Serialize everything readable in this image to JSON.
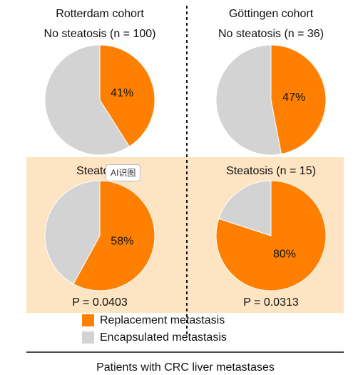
{
  "chart_data": [
    {
      "type": "pie",
      "cohort": "Rotterdam cohort",
      "title": "No steatosis (n = 100)",
      "categories": [
        "Replacement metastasis",
        "Encapsulated metastasis"
      ],
      "values": [
        41,
        59
      ],
      "value_labels": [
        "41%",
        null
      ],
      "colors": [
        "#ff8000",
        "#d3d3d3"
      ]
    },
    {
      "type": "pie",
      "cohort": "Göttingen cohort",
      "title": "No steatosis (n = 36)",
      "categories": [
        "Replacement metastasis",
        "Encapsulated metastasis"
      ],
      "values": [
        47,
        53
      ],
      "value_labels": [
        "47%",
        null
      ],
      "colors": [
        "#ff8000",
        "#d3d3d3"
      ]
    },
    {
      "type": "pie",
      "title": "Steatosis",
      "annotation": "P = 0.0403",
      "categories": [
        "Replacement metastasis",
        "Encapsulated metastasis"
      ],
      "values": [
        58,
        42
      ],
      "value_labels": [
        "58%",
        null
      ],
      "colors": [
        "#ff8000",
        "#d3d3d3"
      ]
    },
    {
      "type": "pie",
      "title": "Steatosis (n = 15)",
      "annotation": "P = 0.0313",
      "categories": [
        "Replacement metastasis",
        "Encapsulated metastasis"
      ],
      "values": [
        80,
        20
      ],
      "value_labels": [
        "80%",
        null
      ],
      "colors": [
        "#ff8000",
        "#d3d3d3"
      ]
    }
  ],
  "footer": "Patients with CRC liver metastases",
  "overlay_button": "AI识图"
}
